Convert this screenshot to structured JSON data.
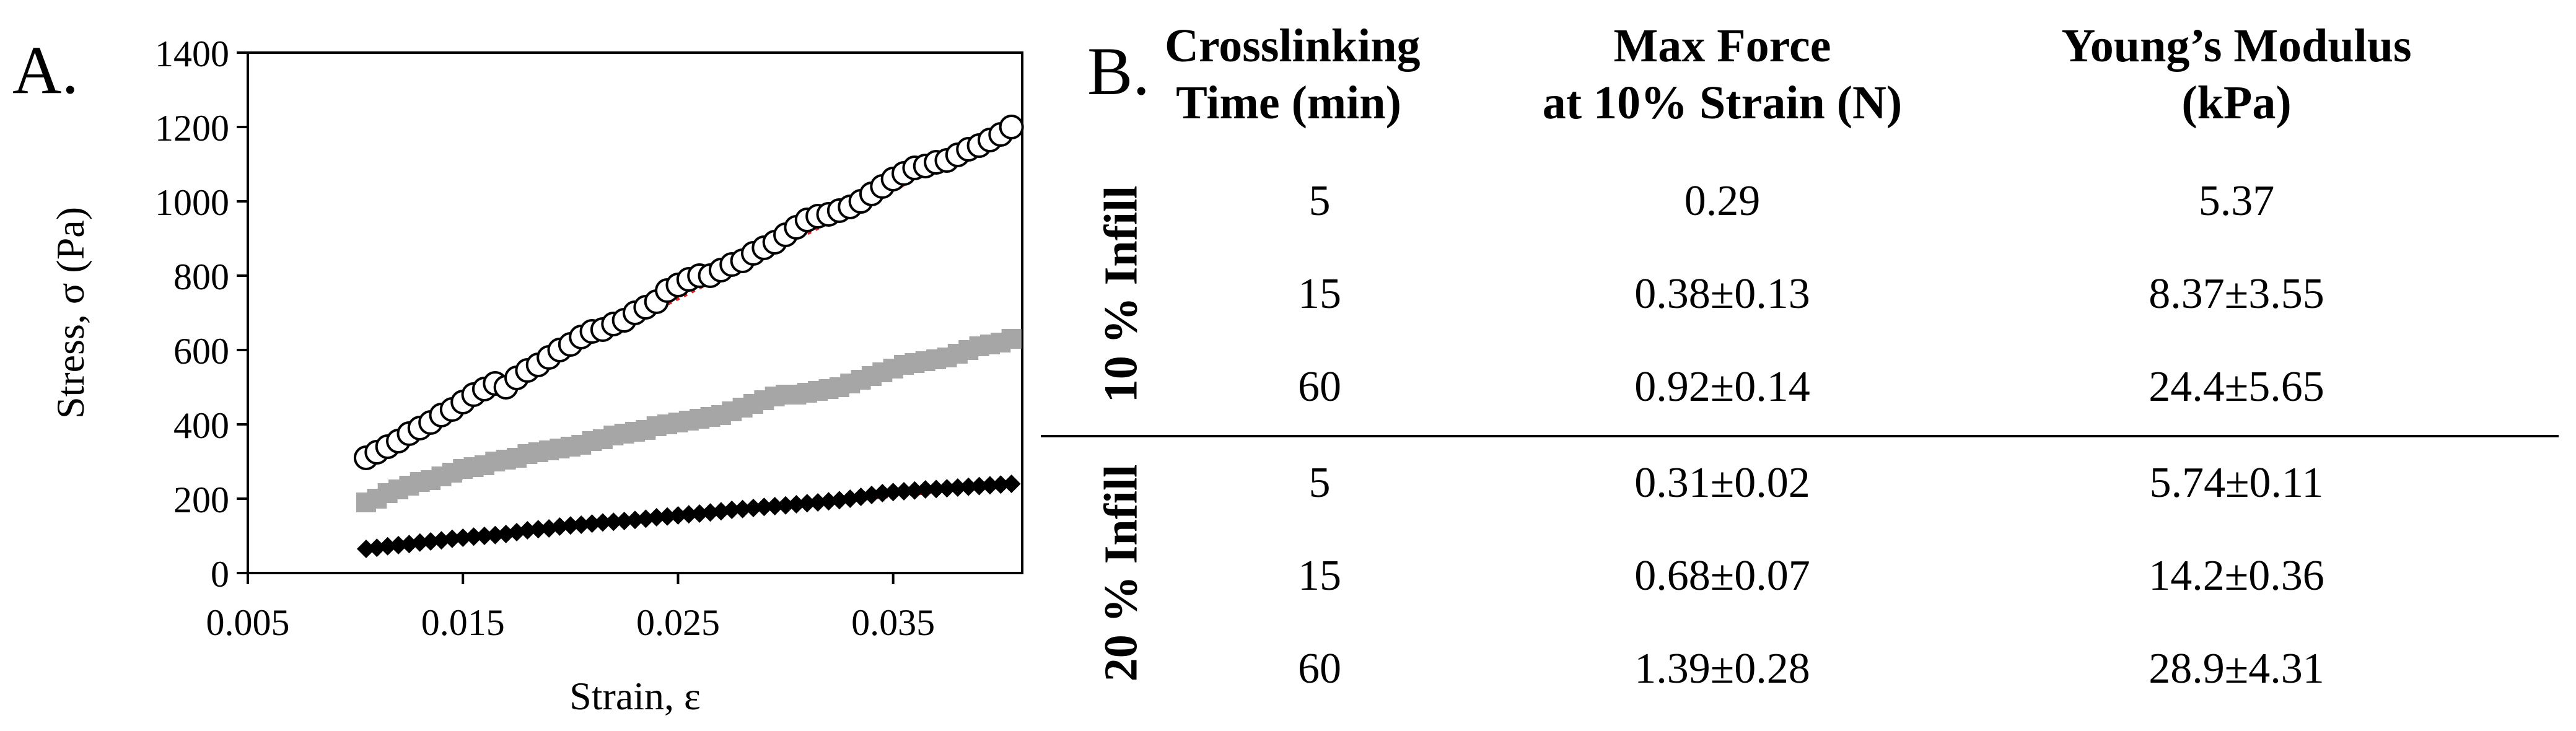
{
  "panels": {
    "a_label": "A.",
    "b_label": "B."
  },
  "colors": {
    "fit_line": "#e02020",
    "gray_series": "#a6a6a6",
    "black": "#000000",
    "white": "#ffffff"
  },
  "chart_data": {
    "type": "scatter",
    "title": "",
    "xlabel": "Strain, ε",
    "ylabel": "Stress, σ (Pa)",
    "xlim": [
      0.005,
      0.041
    ],
    "ylim": [
      0,
      1400
    ],
    "xticks": [
      0.005,
      0.015,
      0.025,
      0.035
    ],
    "xtick_labels": [
      "0.005",
      "0.015",
      "0.025",
      "0.035"
    ],
    "yticks": [
      0,
      200,
      400,
      600,
      800,
      1000,
      1200,
      1400
    ],
    "ytick_labels": [
      "0",
      "200",
      "400",
      "600",
      "800",
      "1000",
      "1200",
      "1400"
    ],
    "grid": false,
    "legend": "none",
    "series": [
      {
        "name": "open circles",
        "marker": "circle-open",
        "x": [
          0.0105,
          0.011,
          0.0115,
          0.012,
          0.0125,
          0.013,
          0.0135,
          0.014,
          0.0145,
          0.015,
          0.0155,
          0.016,
          0.0165,
          0.017,
          0.0175,
          0.018,
          0.0185,
          0.019,
          0.0195,
          0.02,
          0.0205,
          0.021,
          0.0215,
          0.022,
          0.0225,
          0.023,
          0.0235,
          0.024,
          0.0245,
          0.025,
          0.0255,
          0.026,
          0.0265,
          0.027,
          0.0275,
          0.028,
          0.0285,
          0.029,
          0.0295,
          0.03,
          0.0305,
          0.031,
          0.0315,
          0.032,
          0.0325,
          0.033,
          0.0335,
          0.034,
          0.0345,
          0.035,
          0.0355,
          0.036,
          0.0365,
          0.037,
          0.0375,
          0.038,
          0.0385,
          0.039,
          0.0395,
          0.04,
          0.0405
        ],
        "y": [
          310,
          325,
          340,
          355,
          375,
          390,
          405,
          425,
          440,
          460,
          480,
          495,
          510,
          500,
          525,
          545,
          560,
          580,
          600,
          615,
          635,
          650,
          655,
          670,
          680,
          700,
          715,
          730,
          760,
          775,
          790,
          800,
          800,
          815,
          830,
          840,
          860,
          875,
          890,
          910,
          930,
          950,
          960,
          965,
          975,
          985,
          1000,
          1020,
          1040,
          1060,
          1075,
          1090,
          1095,
          1105,
          1110,
          1125,
          1140,
          1150,
          1165,
          1180,
          1200
        ],
        "fit": {
          "x": [
            0.0105,
            0.0405
          ],
          "y": [
            315,
            1190
          ]
        }
      },
      {
        "name": "gray squares",
        "marker": "square-gray",
        "x": [
          0.0105,
          0.011,
          0.0115,
          0.012,
          0.0125,
          0.013,
          0.0135,
          0.014,
          0.0145,
          0.015,
          0.0155,
          0.016,
          0.0165,
          0.017,
          0.0175,
          0.018,
          0.0185,
          0.019,
          0.0195,
          0.02,
          0.0205,
          0.021,
          0.0215,
          0.022,
          0.0225,
          0.023,
          0.0235,
          0.024,
          0.0245,
          0.025,
          0.0255,
          0.026,
          0.0265,
          0.027,
          0.0275,
          0.028,
          0.0285,
          0.029,
          0.0295,
          0.03,
          0.0305,
          0.031,
          0.0315,
          0.032,
          0.0325,
          0.033,
          0.0335,
          0.034,
          0.0345,
          0.035,
          0.0355,
          0.036,
          0.0365,
          0.037,
          0.0375,
          0.038,
          0.0385,
          0.039,
          0.0395,
          0.04,
          0.0405
        ],
        "y": [
          190,
          200,
          215,
          225,
          235,
          245,
          250,
          260,
          270,
          280,
          285,
          290,
          300,
          305,
          310,
          320,
          325,
          330,
          335,
          340,
          345,
          355,
          360,
          370,
          375,
          380,
          385,
          395,
          400,
          405,
          410,
          415,
          420,
          425,
          435,
          445,
          455,
          465,
          475,
          480,
          480,
          485,
          490,
          495,
          500,
          510,
          520,
          530,
          540,
          550,
          560,
          565,
          570,
          575,
          580,
          590,
          600,
          610,
          615,
          620,
          630
        ],
        "fit": {
          "x": [
            0.0105,
            0.0405
          ],
          "y": [
            190,
            630
          ]
        }
      },
      {
        "name": "black diamonds",
        "marker": "diamond-black",
        "x": [
          0.0105,
          0.011,
          0.0115,
          0.012,
          0.0125,
          0.013,
          0.0135,
          0.014,
          0.0145,
          0.015,
          0.0155,
          0.016,
          0.0165,
          0.017,
          0.0175,
          0.018,
          0.0185,
          0.019,
          0.0195,
          0.02,
          0.0205,
          0.021,
          0.0215,
          0.022,
          0.0225,
          0.023,
          0.0235,
          0.024,
          0.0245,
          0.025,
          0.0255,
          0.026,
          0.0265,
          0.027,
          0.0275,
          0.028,
          0.0285,
          0.029,
          0.0295,
          0.03,
          0.0305,
          0.031,
          0.0315,
          0.032,
          0.0325,
          0.033,
          0.0335,
          0.034,
          0.0345,
          0.035,
          0.0355,
          0.036,
          0.0365,
          0.037,
          0.0375,
          0.038,
          0.0385,
          0.039,
          0.0395,
          0.04,
          0.0405
        ],
        "y": [
          65,
          68,
          72,
          75,
          78,
          82,
          85,
          88,
          92,
          95,
          98,
          100,
          102,
          105,
          110,
          115,
          118,
          120,
          125,
          128,
          130,
          133,
          136,
          138,
          140,
          143,
          146,
          150,
          152,
          155,
          158,
          160,
          163,
          166,
          170,
          172,
          175,
          178,
          180,
          182,
          185,
          188,
          190,
          193,
          196,
          200,
          205,
          210,
          215,
          218,
          220,
          222,
          225,
          226,
          228,
          230,
          232,
          234,
          236,
          238,
          240
        ],
        "fit": {
          "x": [
            0.0105,
            0.0405
          ],
          "y": [
            68,
            238
          ]
        }
      }
    ]
  },
  "table": {
    "headers": [
      [
        "Crosslinking",
        "Time (min)"
      ],
      [
        "Max Force",
        "at 10% Strain (N)"
      ],
      [
        "Young’s Modulus",
        "(kPa)"
      ]
    ],
    "groups": [
      {
        "label": "10 % Infill",
        "rows": [
          {
            "time": "5",
            "force": "0.29",
            "modulus": "5.37"
          },
          {
            "time": "15",
            "force": "0.38±0.13",
            "modulus": "8.37±3.55"
          },
          {
            "time": "60",
            "force": "0.92±0.14",
            "modulus": "24.4±5.65"
          }
        ]
      },
      {
        "label": "20 % Infill",
        "rows": [
          {
            "time": "5",
            "force": "0.31±0.02",
            "modulus": "5.74±0.11"
          },
          {
            "time": "15",
            "force": "0.68±0.07",
            "modulus": "14.2±0.36"
          },
          {
            "time": "60",
            "force": "1.39±0.28",
            "modulus": "28.9±4.31"
          }
        ]
      }
    ]
  }
}
